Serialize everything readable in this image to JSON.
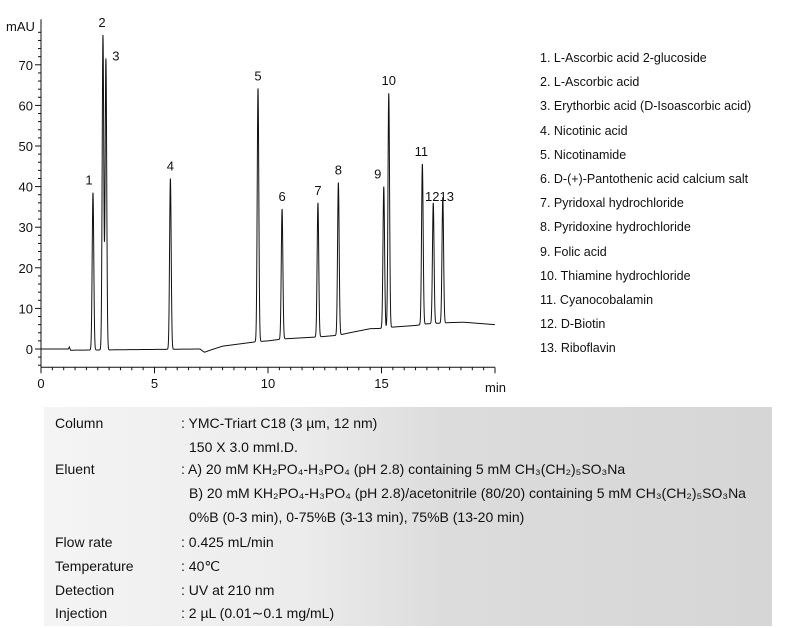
{
  "chart_data": {
    "type": "line",
    "ylabel": "mAU",
    "xlabel": "min",
    "xlim": [
      0,
      20
    ],
    "ylim": [
      -4,
      80
    ],
    "x_ticks": [
      "0",
      "5",
      "10",
      "15"
    ],
    "y_ticks": [
      "0",
      "10",
      "20",
      "30",
      "40",
      "50",
      "60",
      "70"
    ],
    "grid": false,
    "peaks": [
      {
        "label": "1",
        "rt": 2.29,
        "height": 38.5
      },
      {
        "label": "2",
        "rt": 2.73,
        "height": 77.3
      },
      {
        "label": "3",
        "rt": 2.86,
        "height": 71.5
      },
      {
        "label": "4",
        "rt": 5.7,
        "height": 42.0
      },
      {
        "label": "5",
        "rt": 9.56,
        "height": 64.2
      },
      {
        "label": "6",
        "rt": 10.62,
        "height": 34.5
      },
      {
        "label": "7",
        "rt": 12.2,
        "height": 36.0
      },
      {
        "label": "8",
        "rt": 13.1,
        "height": 41.0
      },
      {
        "label": "9",
        "rt": 15.1,
        "height": 40.0
      },
      {
        "label": "10",
        "rt": 15.32,
        "height": 63.0
      },
      {
        "label": "11",
        "rt": 16.8,
        "height": 45.6
      },
      {
        "label": "12",
        "rt": 17.28,
        "height": 36.0
      },
      {
        "label": "13",
        "rt": 17.7,
        "height": 37.4
      }
    ],
    "baseline": [
      [
        0,
        0
      ],
      [
        1.2,
        0
      ],
      [
        1.25,
        0.5
      ],
      [
        1.3,
        -0.3
      ],
      [
        7.0,
        0
      ],
      [
        7.2,
        -0.8
      ],
      [
        7.5,
        -0.2
      ],
      [
        8.0,
        0.7
      ],
      [
        9.5,
        1.8
      ],
      [
        10.0,
        2.0
      ],
      [
        10.7,
        2.5
      ],
      [
        12.3,
        3.0
      ],
      [
        13.1,
        3.4
      ],
      [
        13.6,
        4.0
      ],
      [
        14.5,
        5.0
      ],
      [
        15.1,
        5.1
      ],
      [
        15.5,
        5.4
      ],
      [
        16.5,
        5.8
      ],
      [
        17.0,
        6.2
      ],
      [
        18.0,
        6.5
      ],
      [
        18.6,
        6.6
      ],
      [
        20.0,
        6.0
      ]
    ],
    "legend": [
      "1. L-Ascorbic acid 2-glucoside",
      "2. L-Ascorbic acid",
      "3. Erythorbic acid (D-Isoascorbic acid)",
      "4. Nicotinic acid",
      "5. Nicotinamide",
      "6. D-(+)-Pantothenic acid calcium salt",
      "7. Pyridoxal hydrochloride",
      "8. Pyridoxine hydrochloride",
      "9. Folic acid",
      "10. Thiamine hydrochloride",
      "11. Cyanocobalamin",
      "12. D-Biotin",
      "13. Riboflavin"
    ],
    "line_color": "#111111"
  },
  "conditions": {
    "column_label": "Column",
    "column_value": ": YMC-Triart C18 (3 µm, 12 nm)",
    "column_value2": "150 X 3.0 mmI.D.",
    "eluent_label": "Eluent",
    "eluent_a": ": A) 20 mM KH₂PO₄-H₃PO₄ (pH 2.8) containing 5 mM CH₃(CH₂)₅SO₃Na",
    "eluent_b": "B) 20 mM KH₂PO₄-H₃PO₄ (pH 2.8)/acetonitrile (80/20) containing 5 mM CH₃(CH₂)₅SO₃Na",
    "gradient": "0%B (0-3 min), 0-75%B (3-13 min), 75%B (13-20 min)",
    "flow_label": "Flow rate",
    "flow_value": ": 0.425 mL/min",
    "temp_label": "Temperature",
    "temp_value": ": 40℃",
    "detection_label": "Detection",
    "detection_value": ": UV at 210 nm",
    "injection_label": "Injection",
    "injection_value": ": 2 µL (0.01∼0.1 mg/mL)"
  }
}
